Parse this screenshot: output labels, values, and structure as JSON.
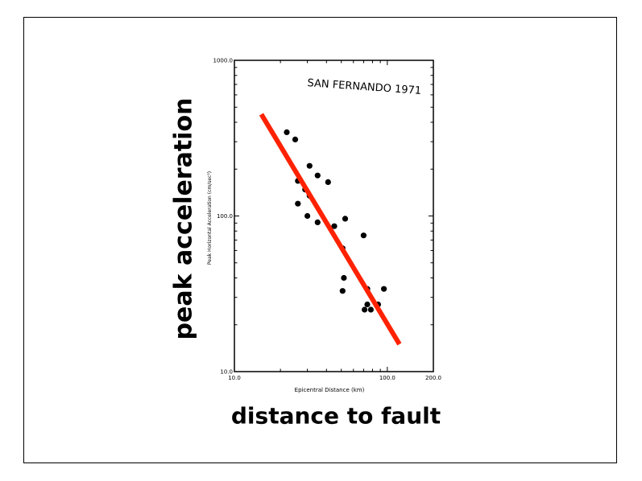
{
  "slide": {
    "ylabel": "peak acceleration",
    "xlabel": "distance to fault"
  },
  "chart_data": {
    "type": "scatter",
    "title": "SAN FERNANDO 1971",
    "xlabel": "Epicentral Distance (km)",
    "ylabel": "Peak Horizontal Acceleration (cm/sec²)",
    "x_scale": "log",
    "y_scale": "log",
    "xlim": [
      10,
      200
    ],
    "ylim": [
      10,
      1000
    ],
    "x_ticks": [
      "10.0",
      "100.0",
      "200.0"
    ],
    "y_ticks": [
      "10.0",
      "100.0",
      "1000.0"
    ],
    "grid": false,
    "points": [
      {
        "x": 22,
        "y": 345
      },
      {
        "x": 25,
        "y": 310
      },
      {
        "x": 31,
        "y": 210
      },
      {
        "x": 35,
        "y": 182
      },
      {
        "x": 26,
        "y": 168
      },
      {
        "x": 41,
        "y": 165
      },
      {
        "x": 29,
        "y": 148
      },
      {
        "x": 31,
        "y": 135
      },
      {
        "x": 26,
        "y": 120
      },
      {
        "x": 30,
        "y": 100
      },
      {
        "x": 53,
        "y": 96
      },
      {
        "x": 35,
        "y": 91
      },
      {
        "x": 45,
        "y": 86
      },
      {
        "x": 70,
        "y": 75
      },
      {
        "x": 51,
        "y": 62
      },
      {
        "x": 52,
        "y": 40
      },
      {
        "x": 51,
        "y": 33
      },
      {
        "x": 74,
        "y": 34
      },
      {
        "x": 95,
        "y": 34
      },
      {
        "x": 74,
        "y": 27
      },
      {
        "x": 87,
        "y": 27
      },
      {
        "x": 71,
        "y": 25
      },
      {
        "x": 78,
        "y": 25
      }
    ],
    "trend_line": {
      "color": "#ff2200",
      "x": [
        15,
        120
      ],
      "y": [
        450,
        15
      ]
    },
    "annotation_color": "#000000"
  }
}
